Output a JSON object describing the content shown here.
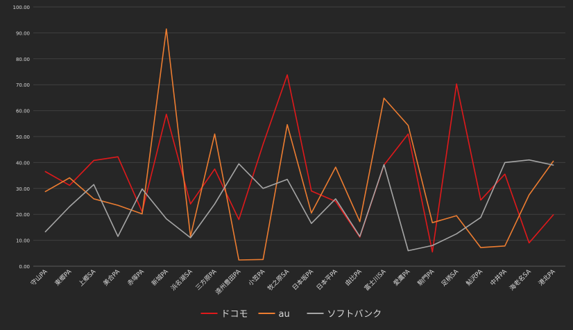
{
  "chart_data": {
    "type": "line",
    "title": "",
    "xlabel": "",
    "ylabel": "",
    "ylim": [
      0,
      100
    ],
    "y_ticks": [
      "0.00",
      "10.00",
      "20.00",
      "30.00",
      "40.00",
      "50.00",
      "60.00",
      "70.00",
      "80.00",
      "90.00",
      "100.00"
    ],
    "grid": true,
    "legend_position": "bottom",
    "categories": [
      "守山PA",
      "東郷PA",
      "上郷SA",
      "美合PA",
      "赤塚PA",
      "新城PA",
      "浜名湖SA",
      "三方原PA",
      "遠州豊田PA",
      "小笠PA",
      "牧之原SA",
      "日本坂PA",
      "日本平PA",
      "由比PA",
      "富士川SA",
      "愛鷹PA",
      "駒門PA",
      "足柄SA",
      "鮎沢PA",
      "中井PA",
      "海老名SA",
      "港北PA"
    ],
    "series": [
      {
        "name": "ドコモ",
        "color": "#e0191b",
        "values": [
          36.5,
          31.2,
          40.8,
          42.2,
          21.0,
          58.6,
          24.0,
          37.5,
          18.0,
          47.0,
          73.8,
          29.0,
          25.0,
          11.2,
          39.0,
          51.0,
          5.5,
          70.3,
          25.5,
          35.5,
          9.0,
          19.8
        ]
      },
      {
        "name": "au",
        "color": "#ed7d31",
        "values": [
          28.8,
          34.1,
          26.0,
          23.5,
          20.2,
          91.5,
          11.5,
          51.0,
          2.4,
          2.6,
          54.6,
          20.5,
          38.2,
          17.2,
          64.8,
          54.3,
          16.8,
          19.5,
          7.2,
          7.8,
          27.5,
          40.5
        ]
      },
      {
        "name": "ソフトバンク",
        "color": "#a6a6a6",
        "values": [
          13.3,
          23.0,
          31.5,
          11.5,
          29.8,
          18.3,
          11.0,
          24.0,
          39.5,
          30.0,
          33.5,
          16.5,
          26.0,
          11.5,
          39.2,
          6.0,
          8.0,
          12.5,
          18.8,
          40.0,
          41.0,
          39.0
        ]
      }
    ]
  }
}
